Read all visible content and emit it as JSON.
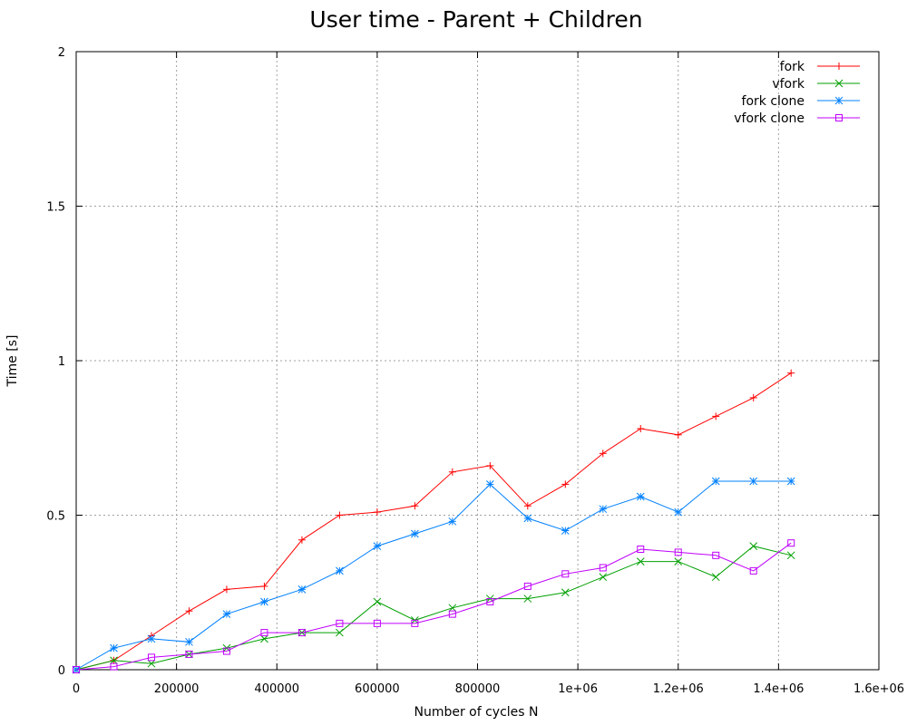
{
  "chart_data": {
    "type": "line",
    "title": "User time - Parent + Children",
    "xlabel": "Number of cycles N",
    "ylabel": "Time [s]",
    "xlim": [
      0,
      1600000
    ],
    "ylim": [
      0,
      2
    ],
    "x_ticks": [
      0,
      200000,
      400000,
      600000,
      800000,
      1000000,
      1200000,
      1400000,
      1600000
    ],
    "x_tick_labels": [
      "0",
      "200000",
      "400000",
      "600000",
      "800000",
      "1e+06",
      "1.2e+06",
      "1.4e+06",
      "1.6e+06"
    ],
    "y_ticks": [
      0,
      0.5,
      1,
      1.5,
      2
    ],
    "y_tick_labels": [
      "0",
      "0.5",
      "1",
      "1.5",
      "2"
    ],
    "grid": true,
    "legend_position": "top-right",
    "x": [
      0,
      75000,
      150000,
      225000,
      300000,
      375000,
      450000,
      525000,
      600000,
      675000,
      750000,
      825000,
      900000,
      975000,
      1050000,
      1125000,
      1200000,
      1275000,
      1350000,
      1425000
    ],
    "series": [
      {
        "name": "fork",
        "color": "#ff0000",
        "marker": "plus",
        "values": [
          0,
          0.03,
          0.11,
          0.19,
          0.26,
          0.27,
          0.42,
          0.5,
          0.51,
          0.53,
          0.64,
          0.66,
          0.53,
          0.6,
          0.7,
          0.78,
          0.76,
          0.82,
          0.88,
          0.96
        ]
      },
      {
        "name": "vfork",
        "color": "#00a000",
        "marker": "cross",
        "values": [
          0,
          0.03,
          0.02,
          0.05,
          0.07,
          0.1,
          0.12,
          0.12,
          0.22,
          0.16,
          0.2,
          0.23,
          0.23,
          0.25,
          0.3,
          0.35,
          0.35,
          0.3,
          0.4,
          0.37
        ]
      },
      {
        "name": "fork clone",
        "color": "#0080ff",
        "marker": "star",
        "values": [
          0,
          0.07,
          0.1,
          0.09,
          0.18,
          0.22,
          0.26,
          0.32,
          0.4,
          0.44,
          0.48,
          0.6,
          0.49,
          0.45,
          0.52,
          0.56,
          0.51,
          0.61,
          0.61,
          0.61
        ]
      },
      {
        "name": "vfork clone",
        "color": "#c000ff",
        "marker": "square",
        "values": [
          0,
          0.01,
          0.04,
          0.05,
          0.06,
          0.12,
          0.12,
          0.15,
          0.15,
          0.15,
          0.18,
          0.22,
          0.27,
          0.31,
          0.33,
          0.39,
          0.38,
          0.37,
          0.32,
          0.41
        ]
      }
    ]
  }
}
